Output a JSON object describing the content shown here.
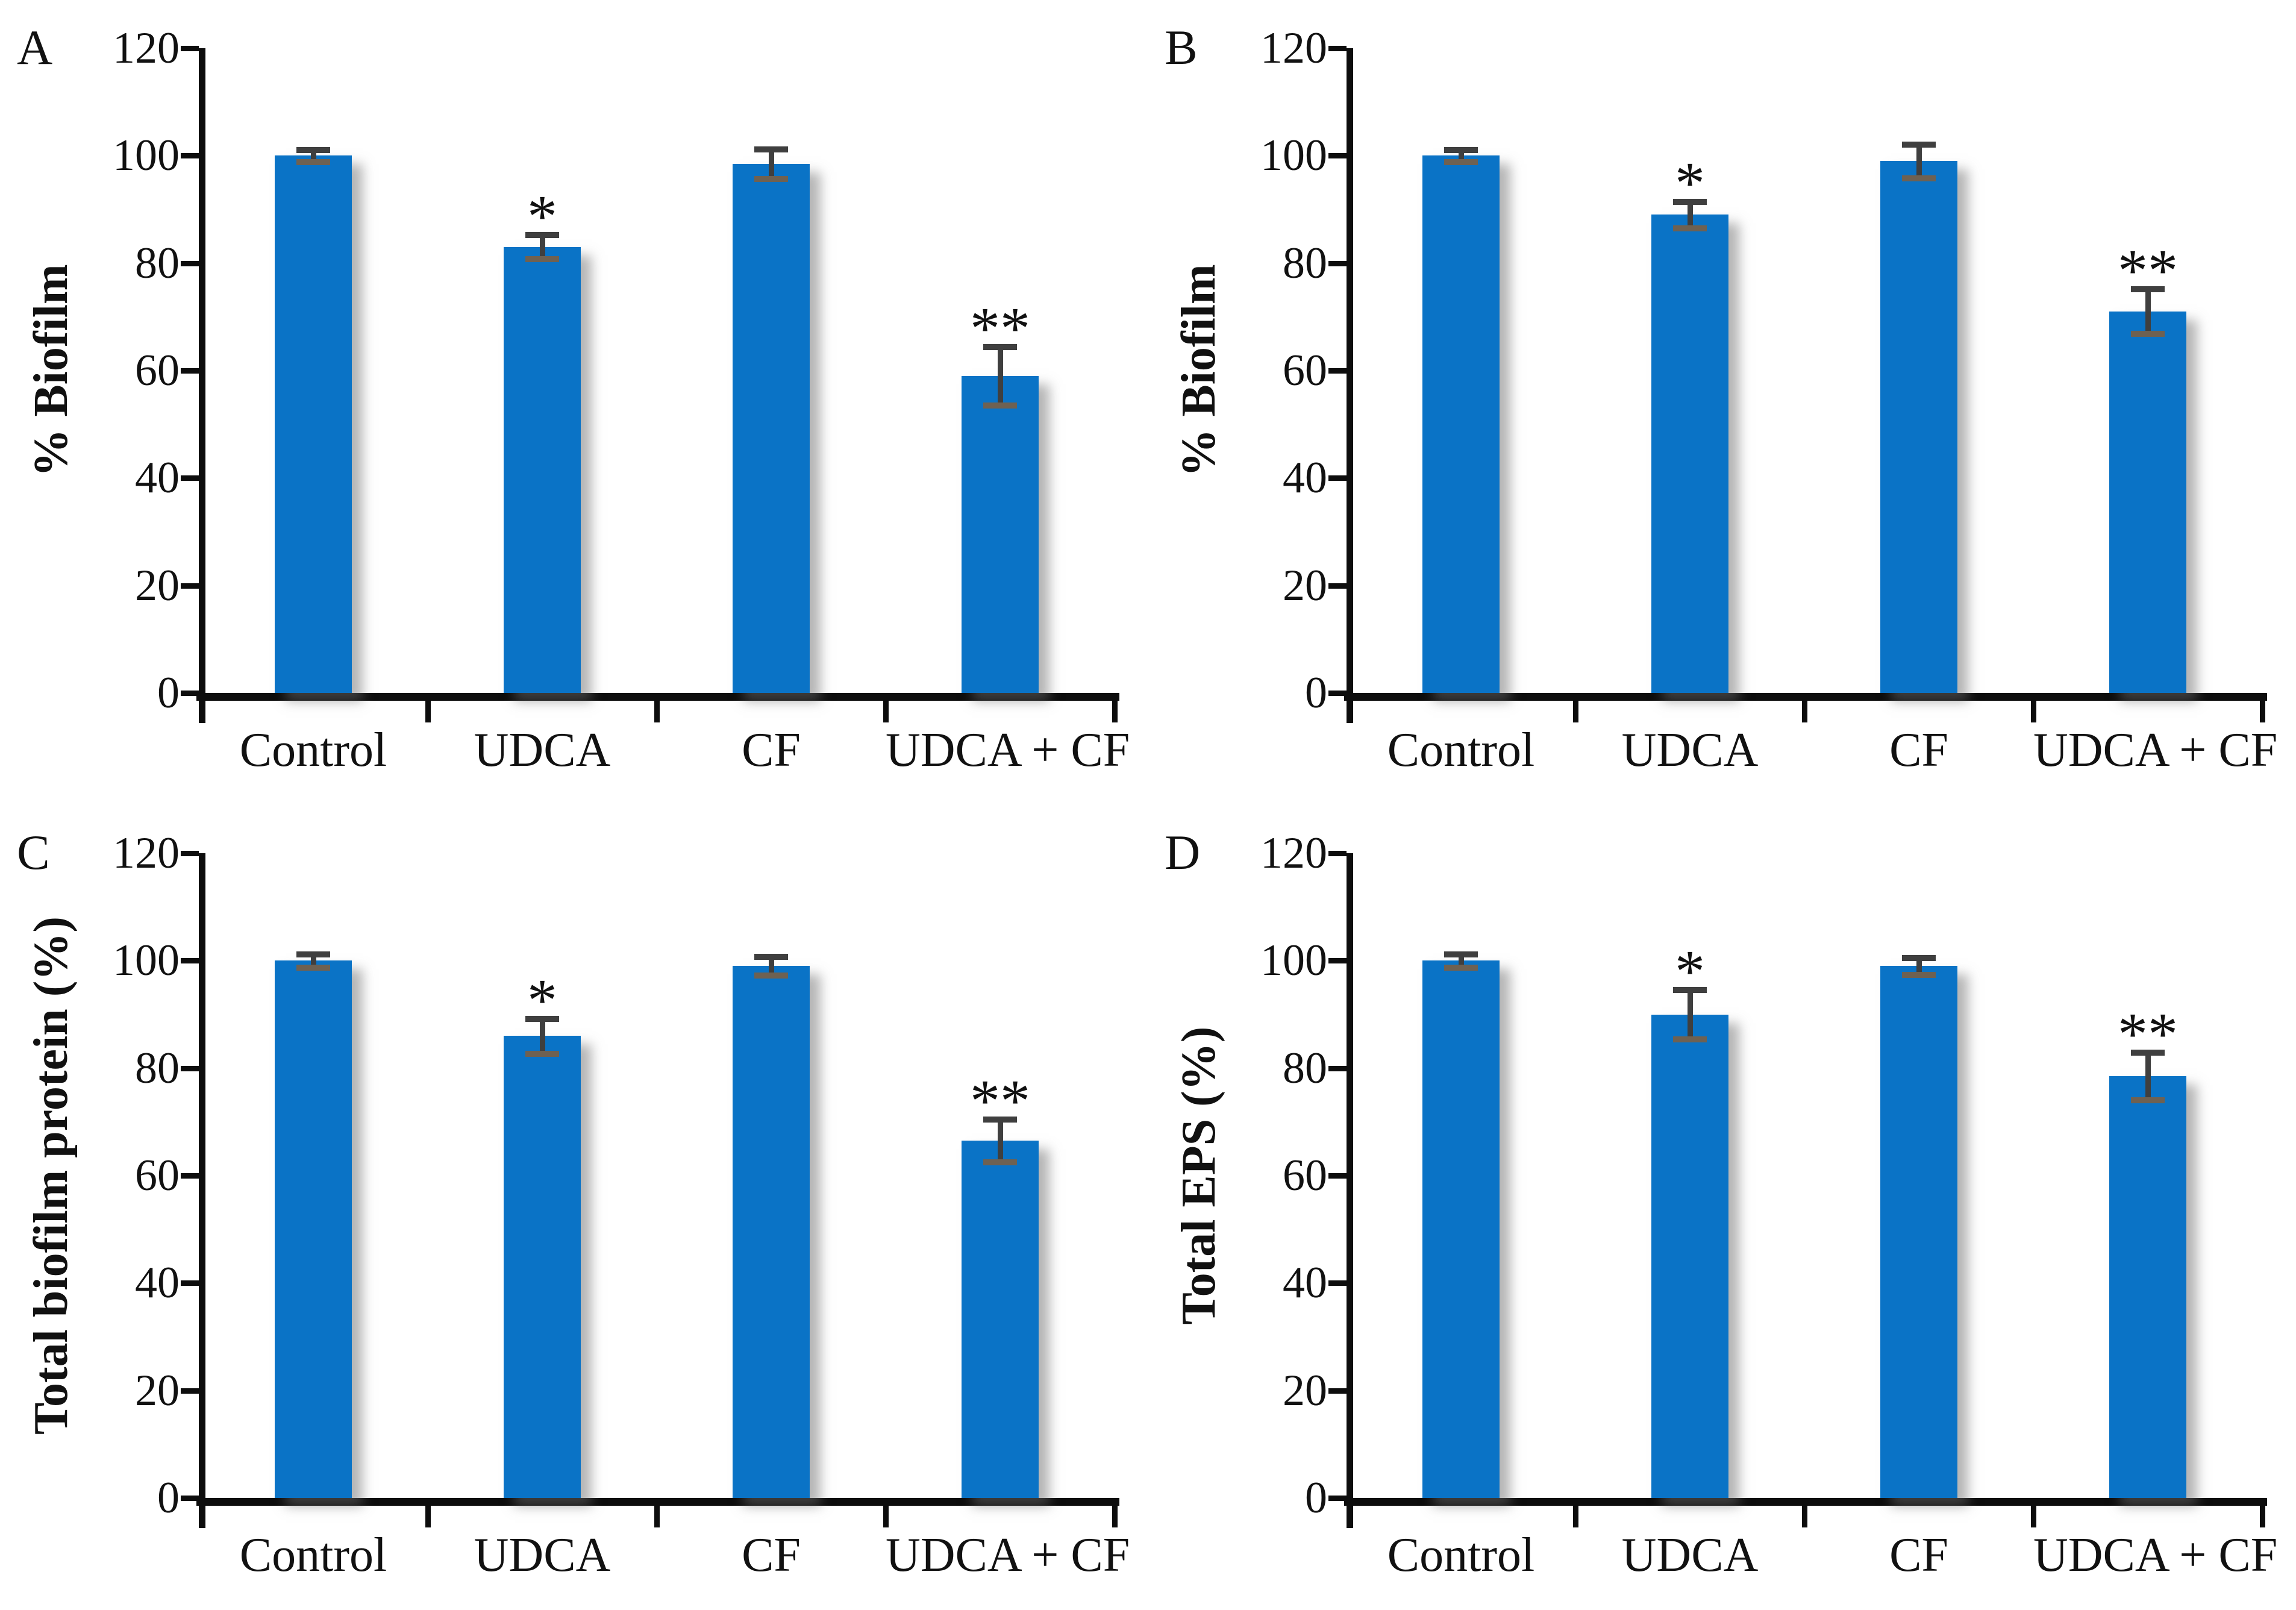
{
  "figure_title": "",
  "colors": {
    "bar": "#0a73c6",
    "bar_shadow": "rgba(110,110,110,0.5)",
    "error_bar": "#3f3f3f",
    "error_cap_bottom": "#6e6152",
    "axis": "#0d0d0d",
    "text": "#111111",
    "background": "#ffffff"
  },
  "chart_data": [
    {
      "type": "bar",
      "panel_label": "A",
      "title": "",
      "xlabel": "",
      "ylabel": "% Biofilm",
      "categories": [
        "Control",
        "UDCA",
        "CF",
        "UDCA + CF"
      ],
      "values": [
        100,
        83,
        98.5,
        59
      ],
      "errors": [
        1.2,
        2.3,
        2.8,
        5.5
      ],
      "significance": [
        "",
        "*",
        "",
        "**"
      ],
      "ylim": [
        0,
        120
      ],
      "yticks": [
        0,
        20,
        40,
        60,
        80,
        100,
        120
      ],
      "grid": false,
      "legend_position": "none"
    },
    {
      "type": "bar",
      "panel_label": "B",
      "title": "",
      "xlabel": "",
      "ylabel": "% Biofilm",
      "categories": [
        "Control",
        "UDCA",
        "CF",
        "UDCA + CF"
      ],
      "values": [
        100,
        89,
        99,
        71
      ],
      "errors": [
        1.2,
        2.5,
        3.2,
        4.2
      ],
      "significance": [
        "",
        "*",
        "",
        "**"
      ],
      "ylim": [
        0,
        120
      ],
      "yticks": [
        0,
        20,
        40,
        60,
        80,
        100,
        120
      ],
      "grid": false,
      "legend_position": "none"
    },
    {
      "type": "bar",
      "panel_label": "C",
      "title": "",
      "xlabel": "",
      "ylabel": "Total biofilm protein (%)",
      "categories": [
        "Control",
        "UDCA",
        "CF",
        "UDCA + CF"
      ],
      "values": [
        100,
        86,
        99,
        66.5
      ],
      "errors": [
        1.3,
        3.3,
        1.8,
        4.0
      ],
      "significance": [
        "",
        "*",
        "",
        "**"
      ],
      "ylim": [
        0,
        120
      ],
      "yticks": [
        0,
        20,
        40,
        60,
        80,
        100,
        120
      ],
      "grid": false,
      "legend_position": "none"
    },
    {
      "type": "bar",
      "panel_label": "D",
      "title": "",
      "xlabel": "",
      "ylabel": "Total EPS (%)",
      "categories": [
        "Control",
        "UDCA",
        "CF",
        "UDCA + CF"
      ],
      "values": [
        100,
        90,
        99,
        78.5
      ],
      "errors": [
        1.3,
        4.7,
        1.6,
        4.5
      ],
      "significance": [
        "",
        "*",
        "",
        "**"
      ],
      "ylim": [
        0,
        120
      ],
      "yticks": [
        0,
        20,
        40,
        60,
        80,
        100,
        120
      ],
      "grid": false,
      "legend_position": "none"
    }
  ]
}
